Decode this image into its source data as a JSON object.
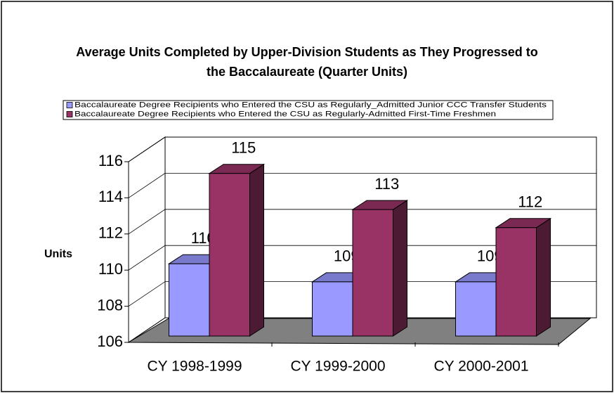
{
  "chart_data": {
    "type": "bar3d",
    "title": "Average Units Completed by Upper-Division Students as They Progressed to the Baccalaureate (Quarter Units)",
    "ylabel": "Units",
    "categories": [
      "CY 1998-1999",
      "CY 1999-2000",
      "CY 2000-2001"
    ],
    "series": [
      {
        "name": "Baccalaureate Degree Recipients who Entered the CSU as Regularly_Admitted Junior CCC Transfer Students",
        "color": "#9999ff",
        "values": [
          110,
          109,
          109
        ]
      },
      {
        "name": "Baccalaureate Degree Recipients who Entered the CSU as Regularly-Admitted First-Time Freshmen",
        "color": "#993366",
        "values": [
          115,
          113,
          112
        ]
      }
    ],
    "ylim": [
      106,
      116
    ],
    "yticks": [
      106,
      108,
      110,
      112,
      114,
      116
    ],
    "grid": true,
    "legend": "top"
  }
}
